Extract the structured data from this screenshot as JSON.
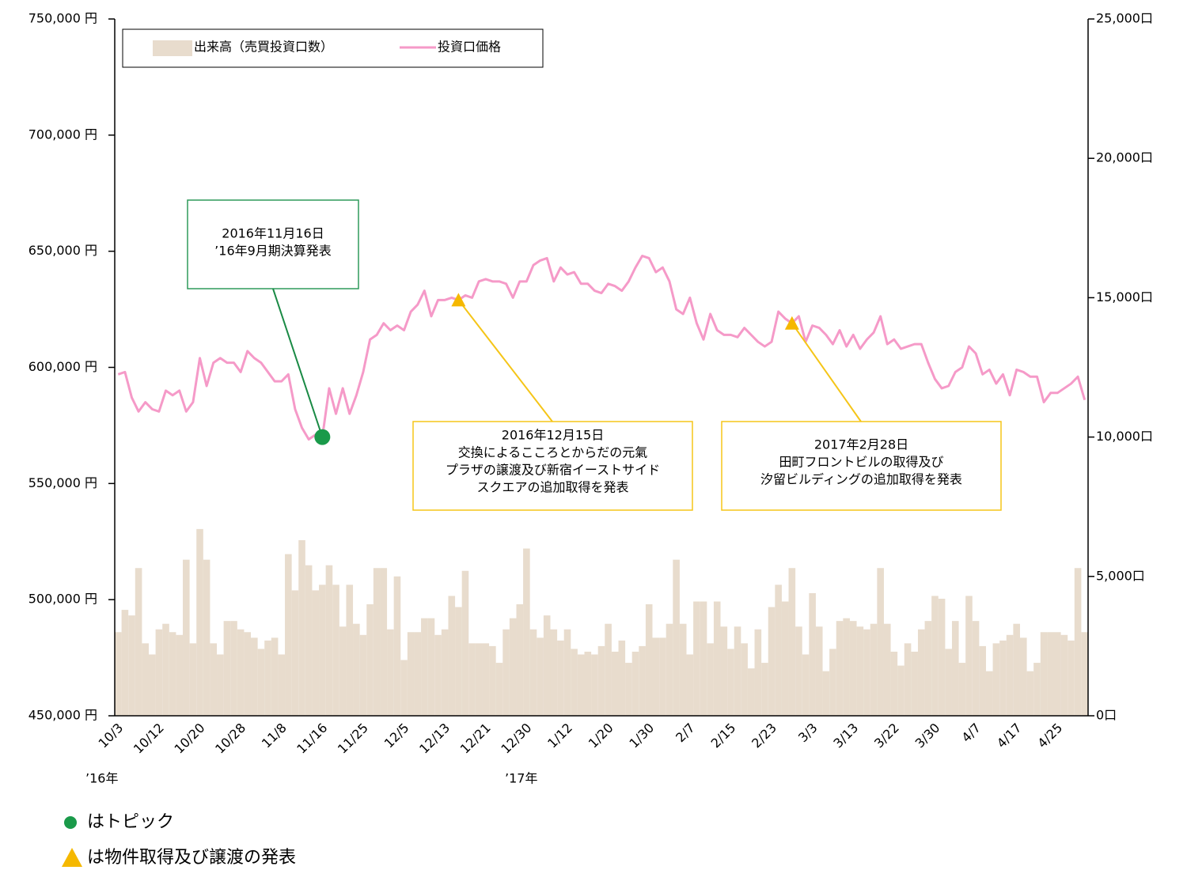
{
  "chart_data": {
    "type": "bar_line",
    "categories": [
      "10/3",
      null,
      null,
      null,
      null,
      null,
      "10/12",
      null,
      null,
      null,
      null,
      null,
      "10/20",
      null,
      null,
      null,
      null,
      null,
      "10/28",
      null,
      null,
      null,
      null,
      null,
      "11/8",
      null,
      null,
      null,
      null,
      null,
      "11/16",
      null,
      null,
      null,
      null,
      null,
      "11/25",
      null,
      null,
      null,
      null,
      null,
      "12/5",
      null,
      null,
      null,
      null,
      null,
      "12/13",
      null,
      null,
      null,
      null,
      null,
      "12/21",
      null,
      null,
      null,
      null,
      null,
      "12/30",
      null,
      null,
      null,
      null,
      null,
      "1/12",
      null,
      null,
      null,
      null,
      null,
      "1/20",
      null,
      null,
      null,
      null,
      null,
      "1/30",
      null,
      null,
      null,
      null,
      null,
      "2/7",
      null,
      null,
      null,
      null,
      null,
      "2/15",
      null,
      null,
      null,
      null,
      null,
      "2/23",
      null,
      null,
      null,
      null,
      null,
      "3/3",
      null,
      null,
      null,
      null,
      null,
      "3/13",
      null,
      null,
      null,
      null,
      null,
      "3/22",
      null,
      null,
      null,
      null,
      null,
      "3/30",
      null,
      null,
      null,
      null,
      null,
      "4/7",
      null,
      null,
      null,
      null,
      null,
      "4/17",
      null,
      null,
      null,
      null,
      null,
      "4/25",
      null,
      null,
      null,
      null
    ],
    "year_labels": [
      "’16年",
      "’17年"
    ],
    "series": [
      {
        "name": "出来高（売買投資口数）",
        "type": "bar",
        "axis": "y2",
        "color": "#e8dccd",
        "values": [
          3000,
          3800,
          3600,
          5300,
          2600,
          2200,
          3100,
          3300,
          3000,
          2900,
          5600,
          2600,
          6700,
          5600,
          2600,
          2200,
          3400,
          3400,
          3100,
          3000,
          2800,
          2400,
          2700,
          2800,
          2200,
          5800,
          4500,
          6300,
          5400,
          4500,
          4700,
          5400,
          4700,
          3200,
          4700,
          3300,
          2900,
          4000,
          5300,
          5300,
          3100,
          5000,
          2000,
          3000,
          3000,
          3500,
          3500,
          2900,
          3100,
          4300,
          3900,
          5200,
          2600,
          2600,
          2600,
          2500,
          1900,
          3100,
          3500,
          4000,
          6000,
          3100,
          2800,
          3600,
          3100,
          2700,
          3100,
          2400,
          2200,
          2300,
          2200,
          2500,
          3300,
          2300,
          2700,
          1900,
          2300,
          2500,
          4000,
          2800,
          2800,
          3300,
          5600,
          3300,
          2200,
          4100,
          4100,
          2600,
          4100,
          3200,
          2400,
          3200,
          2600,
          1700,
          3100,
          1900,
          3900,
          4700,
          4100,
          5300,
          3200,
          2200,
          4400,
          3200,
          1600,
          2400,
          3400,
          3500,
          3400,
          3200,
          3100,
          3300,
          5300,
          3300,
          2300,
          1800,
          2600,
          2300,
          3100,
          3400,
          4300,
          4200,
          2400,
          3400,
          1900,
          4300,
          3400,
          2500,
          1600,
          2600,
          2700,
          2900,
          3300,
          2800,
          1600,
          1900,
          3000,
          3000,
          3000,
          2900,
          2700,
          5300,
          3000
        ]
      },
      {
        "name": "投資口価格",
        "type": "line",
        "axis": "y",
        "color": "#f59ac8",
        "values": [
          597000,
          598000,
          587000,
          581000,
          585000,
          582000,
          581000,
          590000,
          588000,
          590000,
          581000,
          585000,
          604000,
          592000,
          602000,
          604000,
          602000,
          602000,
          598000,
          607000,
          604000,
          602000,
          598000,
          594000,
          594000,
          597000,
          582000,
          574000,
          569000,
          571000,
          570000,
          591000,
          580000,
          591000,
          580000,
          588000,
          598000,
          612000,
          614000,
          619000,
          616000,
          618000,
          616000,
          624000,
          627000,
          633000,
          622000,
          629000,
          629000,
          630000,
          629000,
          631000,
          630000,
          637000,
          638000,
          637000,
          637000,
          636000,
          630000,
          637000,
          637000,
          644000,
          646000,
          647000,
          637000,
          643000,
          640000,
          641000,
          636000,
          636000,
          633000,
          632000,
          636000,
          635000,
          633000,
          637000,
          643000,
          648000,
          647000,
          641000,
          643000,
          637000,
          625000,
          623000,
          630000,
          619000,
          612000,
          623000,
          616000,
          614000,
          614000,
          613000,
          617000,
          614000,
          611000,
          609000,
          611000,
          624000,
          621000,
          619000,
          622000,
          611000,
          618000,
          617000,
          614000,
          610000,
          616000,
          609000,
          614000,
          608000,
          612000,
          615000,
          622000,
          610000,
          612000,
          608000,
          609000,
          610000,
          610000,
          602000,
          595000,
          591000,
          592000,
          598000,
          600000,
          609000,
          606000,
          597000,
          599000,
          593000,
          597000,
          588000,
          599000,
          598000,
          596000,
          596000,
          585000,
          589000,
          589000,
          591000,
          593000,
          596000,
          586000
        ]
      }
    ],
    "ylim": [
      450000,
      750000
    ],
    "yticks": [
      {
        "value": 450000,
        "label": "450,000 円"
      },
      {
        "value": 500000,
        "label": "500,000 円"
      },
      {
        "value": 550000,
        "label": "550,000 円"
      },
      {
        "value": 600000,
        "label": "600,000 円"
      },
      {
        "value": 650000,
        "label": "650,000 円"
      },
      {
        "value": 700000,
        "label": "700,000 円"
      },
      {
        "value": 750000,
        "label": "750,000 円"
      }
    ],
    "y2lim": [
      0,
      25000
    ],
    "y2ticks": [
      {
        "value": 0,
        "label": "0口"
      },
      {
        "value": 5000,
        "label": "5,000口"
      },
      {
        "value": 10000,
        "label": "10,000口"
      },
      {
        "value": 15000,
        "label": "15,000口"
      },
      {
        "value": 20000,
        "label": "20,000口"
      },
      {
        "value": 25000,
        "label": "25,000口"
      }
    ],
    "legend": "top-left",
    "annotations": [
      {
        "text": [
          "2016年11月16日",
          "’16年9月期決算発表"
        ],
        "marker": "circle",
        "color": "#1a9a4a"
      },
      {
        "text": [
          "2016年12月15日",
          "交換によるこころとからだの元氣",
          "プラザの譲渡及び新宿イーストサイド",
          "スクエアの追加取得を発表"
        ],
        "marker": "triangle",
        "color": "#f5b800"
      },
      {
        "text": [
          "2017年2月28日",
          "田町フロントビルの取得及び",
          "汐留ビルディングの追加取得を発表"
        ],
        "marker": "triangle",
        "color": "#f5b800"
      }
    ],
    "notes": [
      {
        "marker": "circle",
        "text": "はトピック"
      },
      {
        "marker": "triangle",
        "text": "は物件取得及び譲渡の発表"
      }
    ]
  }
}
